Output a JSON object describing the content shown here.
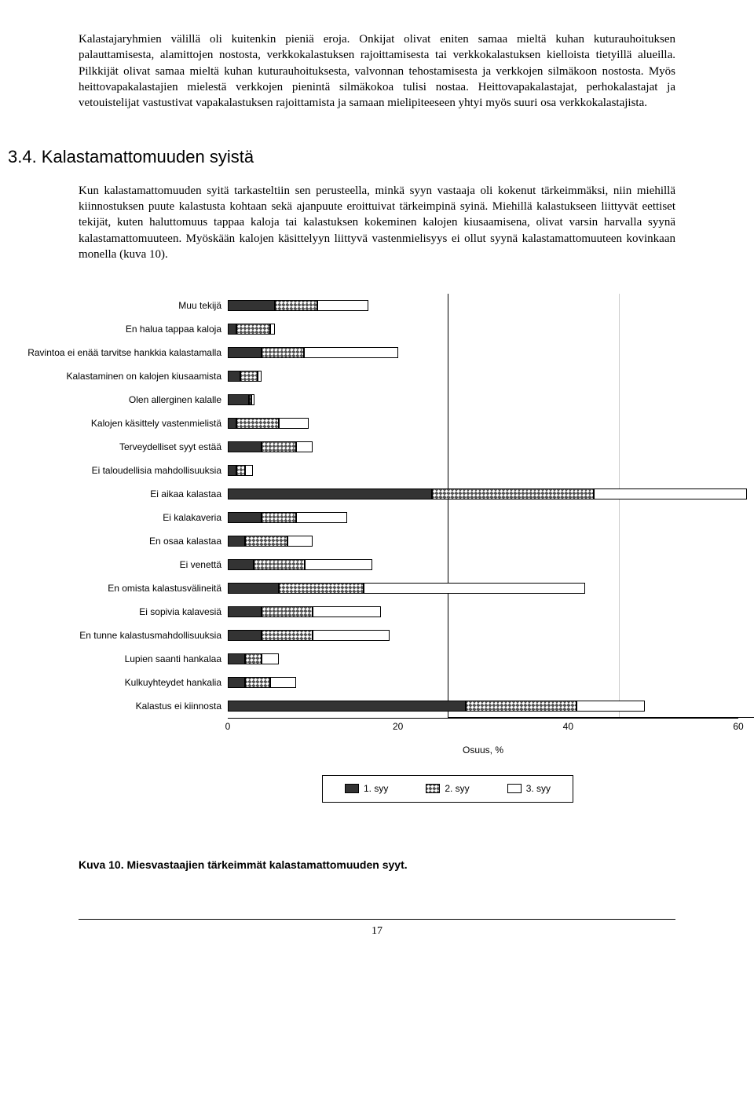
{
  "para1": "Kalastajaryhmien välillä oli kuitenkin pieniä eroja. Onkijat olivat eniten samaa mieltä kuhan kuturauhoituksen palauttamisesta, alamittojen nostosta, verkkokalastuksen rajoittamisesta tai verkkokalastuksen kielloista tietyillä alueilla. Pilkkijät olivat samaa mieltä kuhan kuturauhoituksesta, valvonnan tehostamisesta ja verkkojen silmäkoon nostosta. Myös heittovapakalastajien mielestä verkkojen pienintä silmäkokoa tulisi nostaa. Heittovapakalastajat, perhokalastajat ja vetouistelijat vastustivat vapakalastuksen rajoittamista ja samaan mielipiteeseen yhtyi myös suuri osa verkkokalastajista.",
  "heading": "3.4. Kalastamattomuuden syistä",
  "para2": "Kun kalastamattomuuden syitä tarkasteltiin sen perusteella, minkä syyn vastaaja oli kokenut tärkeimmäksi, niin miehillä kiinnostuksen puute kalastusta kohtaan sekä ajanpuute eroittuivat tärkeimpinä syinä. Miehillä kalastukseen liittyvät eettiset tekijät, kuten haluttomuus tappaa kaloja tai kalastuksen kokeminen kalojen kiusaamisena, olivat varsin harvalla syynä kalastamattomuuteen. Myöskään kalojen käsittelyyn liittyvä vastenmielisyys ei ollut syynä kalastamattomuuteen kovinkaan monella (kuva 10).",
  "chart": {
    "type": "stacked-bar-horizontal",
    "xmax": 60,
    "xtick_step": 20,
    "xlabel": "Osuus, %",
    "series_labels": [
      "1. syy",
      "2. syy",
      "3. syy"
    ],
    "series_colors": [
      "#333333",
      "cross",
      "#ffffff"
    ],
    "categories": [
      {
        "label": "Muu tekijä",
        "values": [
          5.5,
          5.0,
          6.0
        ]
      },
      {
        "label": "En halua tappaa kaloja",
        "values": [
          1.0,
          4.0,
          0.5
        ]
      },
      {
        "label": "Ravintoa ei enää tarvitse hankkia kalastamalla",
        "values": [
          4.0,
          5.0,
          11.0
        ]
      },
      {
        "label": "Kalastaminen on kalojen kiusaamista",
        "values": [
          1.5,
          2.0,
          0.5
        ]
      },
      {
        "label": "Olen allerginen kalalle",
        "values": [
          2.5,
          0.3,
          0.3
        ]
      },
      {
        "label": "Kalojen käsittely vastenmielistä",
        "values": [
          1.0,
          5.0,
          3.5
        ]
      },
      {
        "label": "Terveydelliset syyt estää",
        "values": [
          4.0,
          4.0,
          2.0
        ]
      },
      {
        "label": "Ei taloudellisia mahdollisuuksia",
        "values": [
          1.0,
          1.0,
          1.0
        ]
      },
      {
        "label": "Ei aikaa kalastaa",
        "values": [
          24.0,
          19.0,
          18.0
        ]
      },
      {
        "label": "Ei kalakaveria",
        "values": [
          4.0,
          4.0,
          6.0
        ]
      },
      {
        "label": "En osaa kalastaa",
        "values": [
          2.0,
          5.0,
          3.0
        ]
      },
      {
        "label": "Ei venettä",
        "values": [
          3.0,
          6.0,
          8.0
        ]
      },
      {
        "label": "En omista kalastusvälineitä",
        "values": [
          6.0,
          10.0,
          26.0
        ]
      },
      {
        "label": "Ei sopivia kalavesiä",
        "values": [
          4.0,
          6.0,
          8.0
        ]
      },
      {
        "label": "En tunne kalastusmahdollisuuksia",
        "values": [
          4.0,
          6.0,
          9.0
        ]
      },
      {
        "label": "Lupien saanti hankalaa",
        "values": [
          2.0,
          2.0,
          2.0
        ]
      },
      {
        "label": "Kulkuyhteydet hankalia",
        "values": [
          2.0,
          3.0,
          3.0
        ]
      },
      {
        "label": "Kalastus ei kiinnosta",
        "values": [
          28.0,
          13.0,
          8.0
        ]
      }
    ]
  },
  "caption": "Kuva 10. Miesvastaajien tärkeimmät kalastamattomuuden syyt.",
  "page_number": "17"
}
